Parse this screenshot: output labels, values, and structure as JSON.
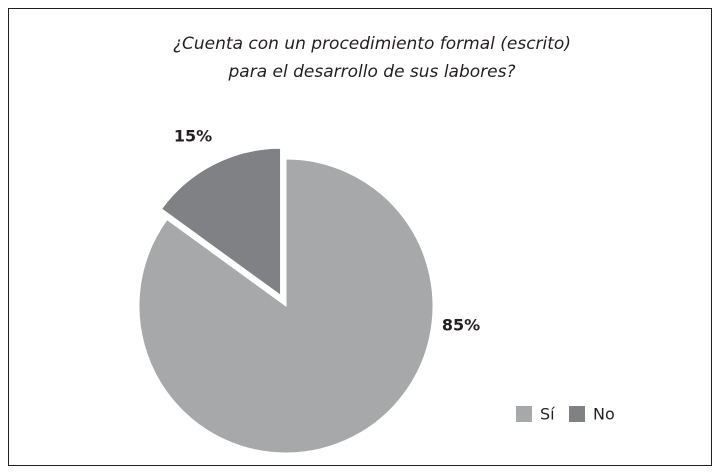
{
  "chart_data": {
    "type": "pie",
    "title": [
      "¿Cuenta con un procedimiento formal (escrito)",
      "para el desarrollo de sus labores?"
    ],
    "categories": [
      "Sí",
      "No"
    ],
    "values": [
      85,
      15
    ],
    "value_labels": [
      "85%",
      "15%"
    ],
    "colors": [
      "#a7a8aa",
      "#808184"
    ],
    "legend": "lower right"
  }
}
